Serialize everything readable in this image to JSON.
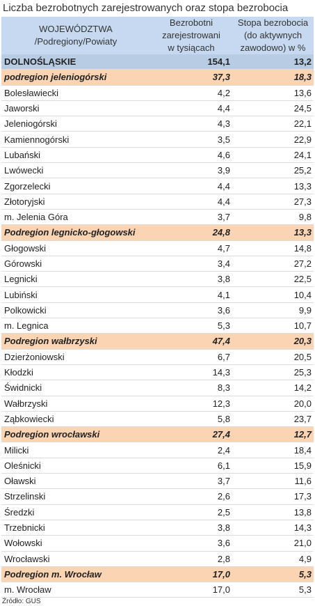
{
  "title": "Liczba bezrobotnych zarejestrowanych oraz stopa bezrobocia",
  "header": {
    "col1_line1": "WOJEWÓDZTWA",
    "col1_line2": "/Podregiony/Powiaty",
    "col2_line1": "Bezrobotni",
    "col2_line2": "zarejestrowani",
    "col2_line3": "w tysiącach",
    "col3_line1": "Stopa bezrobocia",
    "col3_line2": "(do aktywnych",
    "col3_line3": "zawodowo) w %"
  },
  "rows": [
    {
      "type": "total",
      "name": "DOLNOŚLĄSKIE",
      "unemployed": "154,1",
      "rate": "13,2"
    },
    {
      "type": "sub",
      "name": "podregion   jeleniogórski",
      "unemployed": "37,3",
      "rate": "18,3"
    },
    {
      "type": "row",
      "name": "Bolesławiecki",
      "unemployed": "4,2",
      "rate": "13,6"
    },
    {
      "type": "row",
      "name": "Jaworski",
      "unemployed": "4,4",
      "rate": "24,5"
    },
    {
      "type": "row",
      "name": "Jeleniogórski",
      "unemployed": "4,3",
      "rate": "22,1"
    },
    {
      "type": "row",
      "name": "Kamiennogórski",
      "unemployed": "3,5",
      "rate": "22,9"
    },
    {
      "type": "row",
      "name": "Lubański",
      "unemployed": "4,6",
      "rate": "24,1"
    },
    {
      "type": "row",
      "name": "Lwówecki",
      "unemployed": "3,9",
      "rate": "25,2"
    },
    {
      "type": "row",
      "name": "Zgorzelecki",
      "unemployed": "4,4",
      "rate": "13,3"
    },
    {
      "type": "row",
      "name": "Złotoryjski",
      "unemployed": "4,4",
      "rate": "27,3"
    },
    {
      "type": "row",
      "name": "m. Jelenia Góra",
      "unemployed": "3,7",
      "rate": "9,8"
    },
    {
      "type": "sub",
      "name": "Podregion legnicko-głogowski",
      "unemployed": "24,8",
      "rate": "13,3"
    },
    {
      "type": "row",
      "name": "Głogowski",
      "unemployed": "4,7",
      "rate": "14,8"
    },
    {
      "type": "row",
      "name": "Górowski",
      "unemployed": "3,4",
      "rate": "27,2"
    },
    {
      "type": "row",
      "name": "Legnicki",
      "unemployed": "3,8",
      "rate": "22,5"
    },
    {
      "type": "row",
      "name": "Lubiński",
      "unemployed": "4,1",
      "rate": "10,4"
    },
    {
      "type": "row",
      "name": "Polkowicki",
      "unemployed": "3,6",
      "rate": "9,9"
    },
    {
      "type": "row",
      "name": "m. Legnica",
      "unemployed": "5,3",
      "rate": "10,7"
    },
    {
      "type": "sub",
      "name": "Podregion wałbrzyski",
      "unemployed": "47,4",
      "rate": "20,3"
    },
    {
      "type": "row",
      "name": "Dzierżoniowski",
      "unemployed": "6,7",
      "rate": "20,5"
    },
    {
      "type": "row",
      "name": "Kłodzki",
      "unemployed": "14,3",
      "rate": "25,3"
    },
    {
      "type": "row",
      "name": "Świdnicki",
      "unemployed": "8,3",
      "rate": "14,2"
    },
    {
      "type": "row",
      "name": "Wałbrzyski",
      "unemployed": "12,3",
      "rate": "20,0"
    },
    {
      "type": "row",
      "name": "Ząbkowiecki",
      "unemployed": "5,8",
      "rate": "23,7"
    },
    {
      "type": "sub",
      "name": "Podregion wrocławski",
      "unemployed": "27,4",
      "rate": "12,7"
    },
    {
      "type": "row",
      "name": "Milicki",
      "unemployed": "2,4",
      "rate": "18,4"
    },
    {
      "type": "row",
      "name": "Oleśnicki",
      "unemployed": "6,1",
      "rate": "15,9"
    },
    {
      "type": "row",
      "name": "Oławski",
      "unemployed": "3,7",
      "rate": "11,6"
    },
    {
      "type": "row",
      "name": "Strzelinski",
      "unemployed": "2,6",
      "rate": "17,3"
    },
    {
      "type": "row",
      "name": "Średzki",
      "unemployed": "2,5",
      "rate": "13,8"
    },
    {
      "type": "row",
      "name": "Trzebnicki",
      "unemployed": "3,8",
      "rate": "14,3"
    },
    {
      "type": "row",
      "name": "Wołowski",
      "unemployed": "3,6",
      "rate": "21,0"
    },
    {
      "type": "row",
      "name": "Wrocławski",
      "unemployed": "2,8",
      "rate": "4,9"
    },
    {
      "type": "sub",
      "name": "Podregion m. Wrocław",
      "unemployed": "17,0",
      "rate": "5,3"
    },
    {
      "type": "row",
      "name": "m. Wrocław",
      "unemployed": "17,0",
      "rate": "5,3"
    }
  ],
  "source": "Źródło: GUS"
}
